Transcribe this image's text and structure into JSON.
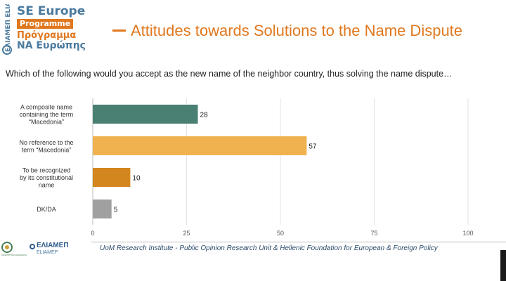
{
  "logo": {
    "vertical_text": "ΕΛΙΑΜΕΠ ELIAMEP",
    "line1": "SE Europe",
    "line2": "Programme",
    "line3": "Πρόγραμμα",
    "line4": "ΝΑ Ευρώπης",
    "color_blue": "#4a7a9e",
    "color_orange": "#e0781f"
  },
  "title": "Attitudes towards Solutions to the Name Dispute",
  "question": "Which of the following would you accept as the new name of the neighbor country, thus solving the name dispute…",
  "chart_data": {
    "type": "bar",
    "orientation": "horizontal",
    "categories": [
      [
        "A composite name",
        "containing the term",
        "“Macedonia”"
      ],
      [
        "No reference to the",
        "term “Macedonia”"
      ],
      [
        "To be recognized",
        "by its constitutional",
        "name"
      ],
      [
        "DK/DA"
      ]
    ],
    "values": [
      28,
      57,
      10,
      5
    ],
    "colors": [
      "#4a7f73",
      "#f0b24f",
      "#d4861e",
      "#a0a0a0"
    ],
    "xlim": [
      0,
      100
    ],
    "xticks": [
      0,
      25,
      50,
      75,
      100
    ],
    "grid": true,
    "data_labels": true
  },
  "footer": {
    "logo2_main": "ΕΛΙΑΜΕΠ",
    "logo2_sub": "ELIAMEP",
    "logo1_caption": "ΠΑΝΕΠΙΣΤΗΜΙΟ ΜΑΚΕΔΟΝΙΑΣ",
    "text": "UoM Research Institute - Public Opinion Research Unit & Hellenic Foundation for European & Foreign Policy"
  }
}
